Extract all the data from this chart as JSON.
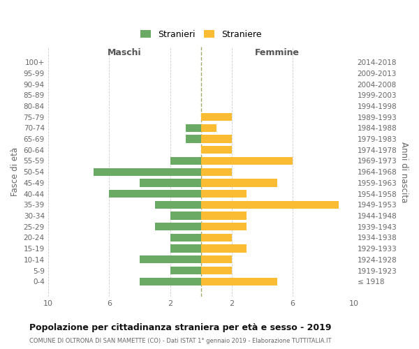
{
  "age_groups": [
    "100+",
    "95-99",
    "90-94",
    "85-89",
    "80-84",
    "75-79",
    "70-74",
    "65-69",
    "60-64",
    "55-59",
    "50-54",
    "45-49",
    "40-44",
    "35-39",
    "30-34",
    "25-29",
    "20-24",
    "15-19",
    "10-14",
    "5-9",
    "0-4"
  ],
  "birth_years": [
    "≤ 1918",
    "1919-1923",
    "1924-1928",
    "1929-1933",
    "1934-1938",
    "1939-1943",
    "1944-1948",
    "1949-1953",
    "1954-1958",
    "1959-1963",
    "1964-1968",
    "1969-1973",
    "1974-1978",
    "1979-1983",
    "1984-1988",
    "1989-1993",
    "1994-1998",
    "1999-2003",
    "2004-2008",
    "2009-2013",
    "2014-2018"
  ],
  "maschi": [
    0,
    0,
    0,
    0,
    0,
    0,
    1,
    1,
    0,
    2,
    7,
    4,
    6,
    3,
    2,
    3,
    2,
    2,
    4,
    2,
    4
  ],
  "femmine": [
    0,
    0,
    0,
    0,
    0,
    2,
    1,
    2,
    2,
    6,
    2,
    5,
    3,
    9,
    3,
    3,
    2,
    3,
    2,
    2,
    5
  ],
  "male_color": "#6aaa64",
  "female_color": "#f9bc32",
  "center_line_color": "#888833",
  "background_color": "#ffffff",
  "grid_color": "#cccccc",
  "title": "Popolazione per cittadinanza straniera per età e sesso - 2019",
  "subtitle": "COMUNE DI OLTRONA DI SAN MAMETTE (CO) - Dati ISTAT 1° gennaio 2019 - Elaborazione TUTTITALIA.IT",
  "xlabel_left": "Maschi",
  "xlabel_right": "Femmine",
  "ylabel_left": "Fasce di età",
  "ylabel_right": "Anni di nascita",
  "legend_male": "Stranieri",
  "legend_female": "Straniere",
  "xlim": 10
}
